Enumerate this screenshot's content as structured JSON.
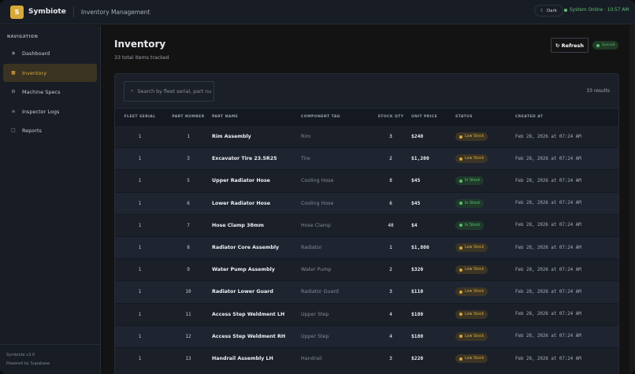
{
  "header": {
    "logo_letter": "S",
    "brand": "Symbiote",
    "subtitle": "Inventory Management",
    "theme_label": "Dark",
    "theme_icon": "moon-icon",
    "status": "System Online · 10:57 AM",
    "status_color": "#5fbf73"
  },
  "sidebar": {
    "section_label": "NAVIGATION",
    "items": [
      {
        "label": "Dashboard",
        "icon": "◈"
      },
      {
        "label": "Inventory",
        "icon": "■",
        "active": true
      },
      {
        "label": "Machine Specs",
        "icon": "⚙"
      },
      {
        "label": "Inspector Logs",
        "icon": "≡"
      },
      {
        "label": "Reports",
        "icon": "□"
      }
    ],
    "footer_version": "Symbiote v3.0",
    "footer_powered": "Powered by Supabase"
  },
  "main": {
    "title": "Inventory",
    "subtitle": "33 total items tracked",
    "refresh_label": "↻ Refresh",
    "synced_label": "Synced",
    "search_placeholder": "Search by fleet serial, part nu",
    "results": "33 results",
    "columns": [
      "FLEET SERIAL",
      "PART NUMBER",
      "PART NAME",
      "COMPONENT TAG",
      "STOCK QTY",
      "UNIT PRICE",
      "STATUS",
      "CREATED AT"
    ],
    "rows": [
      [
        "1",
        "1",
        "Rim Assembly",
        "Rim",
        "3",
        "$240",
        "Low Stock",
        "Feb 28, 2026 at 07:24 AM"
      ],
      [
        "1",
        "3",
        "Excavator Tire 23.5R25",
        "Tire",
        "2",
        "$1,200",
        "Low Stock",
        "Feb 28, 2026 at 07:24 AM"
      ],
      [
        "1",
        "5",
        "Upper Radiator Hose",
        "Cooling Hose",
        "8",
        "$45",
        "In Stock",
        "Feb 28, 2026 at 07:24 AM"
      ],
      [
        "1",
        "6",
        "Lower Radiator Hose",
        "Cooling Hose",
        "6",
        "$45",
        "In Stock",
        "Feb 28, 2026 at 07:24 AM"
      ],
      [
        "1",
        "7",
        "Hose Clamp 38mm",
        "Hose Clamp",
        "40",
        "$4",
        "In Stock",
        "Feb 28, 2026 at 07:24 AM"
      ],
      [
        "1",
        "8",
        "Radiator Core Assembly",
        "Radiator",
        "1",
        "$1,800",
        "Low Stock",
        "Feb 28, 2026 at 07:24 AM"
      ],
      [
        "1",
        "9",
        "Water Pump Assembly",
        "Water Pump",
        "2",
        "$320",
        "Low Stock",
        "Feb 28, 2026 at 07:24 AM"
      ],
      [
        "1",
        "10",
        "Radiator Lower Guard",
        "Radiator Guard",
        "3",
        "$110",
        "Low Stock",
        "Feb 28, 2026 at 07:24 AM"
      ],
      [
        "1",
        "11",
        "Access Step Weldment LH",
        "Upper Step",
        "4",
        "$180",
        "Low Stock",
        "Feb 28, 2026 at 07:24 AM"
      ],
      [
        "1",
        "12",
        "Access Step Weldment RH",
        "Upper Step",
        "4",
        "$180",
        "Low Stock",
        "Feb 28, 2026 at 07:24 AM"
      ],
      [
        "1",
        "13",
        "Handrail Assembly LH",
        "Handrail",
        "3",
        "$220",
        "Low Stock",
        "Feb 28, 2026 at 07:24 AM"
      ]
    ]
  },
  "colors": {
    "accent": "#d6a93a",
    "low_stock": "#d6a93a",
    "in_stock": "#5fbf73"
  }
}
